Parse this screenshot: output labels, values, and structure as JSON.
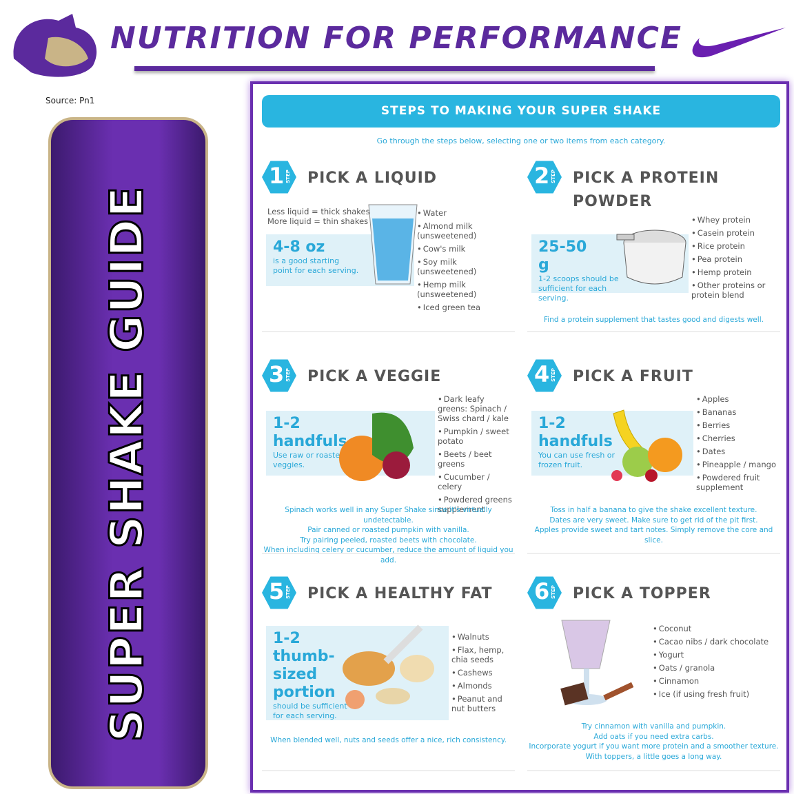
{
  "header": {
    "title": "NUTRITION FOR PERFORMANCE",
    "source": "Source: Pn1"
  },
  "sidebar": {
    "title": "SUPER SHAKE GUIDE"
  },
  "guide": {
    "banner": "STEPS TO MAKING YOUR SUPER SHAKE",
    "intro": "Go through the steps below, selecting one or two items from each category.",
    "step_label": "STEP",
    "steps": [
      {
        "number": "1",
        "title": "PICK A LIQUID",
        "extra": [
          "Less liquid = thick shakes",
          "More liquid = thin shakes"
        ],
        "amount": "4-8 oz",
        "amount_note": "is a good starting point for each serving.",
        "items": [
          "Water",
          "Almond milk (unsweetened)",
          "Cow's milk",
          "Soy milk (unsweetened)",
          "Hemp milk (unsweetened)",
          "Iced green tea"
        ]
      },
      {
        "number": "2",
        "title": "PICK A PROTEIN POWDER",
        "amount": "25-50 g",
        "amount_note": "1-2 scoops should be sufficient for each serving.",
        "items": [
          "Whey protein",
          "Casein protein",
          "Rice protein",
          "Pea protein",
          "Hemp protein",
          "Other proteins or protein blend"
        ],
        "notes": [
          "Find a protein supplement that tastes good and digests well."
        ]
      },
      {
        "number": "3",
        "title": "PICK A VEGGIE",
        "amount": "1-2 handfuls",
        "amount_note": "Use raw or roasted veggies.",
        "items": [
          "Dark leafy greens: Spinach / Swiss chard / kale",
          "Pumpkin / sweet potato",
          "Beets / beet greens",
          "Cucumber / celery",
          "Powdered greens supplement"
        ],
        "notes": [
          "Spinach works well in any Super Shake since it's virtually undetectable.",
          "Pair canned or roasted pumpkin with vanilla.",
          "Try pairing peeled, roasted beets with chocolate.",
          "When including celery or cucumber, reduce the amount of liquid you add."
        ]
      },
      {
        "number": "4",
        "title": "PICK A FRUIT",
        "amount": "1-2 handfuls",
        "amount_note": "You can use fresh or frozen fruit.",
        "items": [
          "Apples",
          "Bananas",
          "Berries",
          "Cherries",
          "Dates",
          "Pineapple / mango",
          "Powdered fruit supplement"
        ],
        "notes": [
          "Toss in half a banana to give the shake excellent texture.",
          "Dates are very sweet. Make sure to get rid of the pit first.",
          "Apples provide sweet and tart notes. Simply remove the core and slice."
        ]
      },
      {
        "number": "5",
        "title": "PICK A HEALTHY FAT",
        "amount": "1-2 thumb-sized portion",
        "amount_note": "should be sufficient for each serving.",
        "items": [
          "Walnuts",
          "Flax, hemp, chia seeds",
          "Cashews",
          "Almonds",
          "Peanut and nut butters"
        ],
        "notes": [
          "When blended well, nuts and seeds offer a nice, rich consistency."
        ]
      },
      {
        "number": "6",
        "title": "PICK A TOPPER",
        "items": [
          "Coconut",
          "Cacao nibs / dark chocolate",
          "Yogurt",
          "Oats / granola",
          "Cinnamon",
          "Ice (if using fresh fruit)"
        ],
        "notes": [
          "Try cinnamon with vanilla and pumpkin.",
          "Add oats if you need extra carbs.",
          "Incorporate yogurt if you want more protein and a smoother texture.",
          "With toppers, a little goes a long way."
        ]
      }
    ]
  }
}
